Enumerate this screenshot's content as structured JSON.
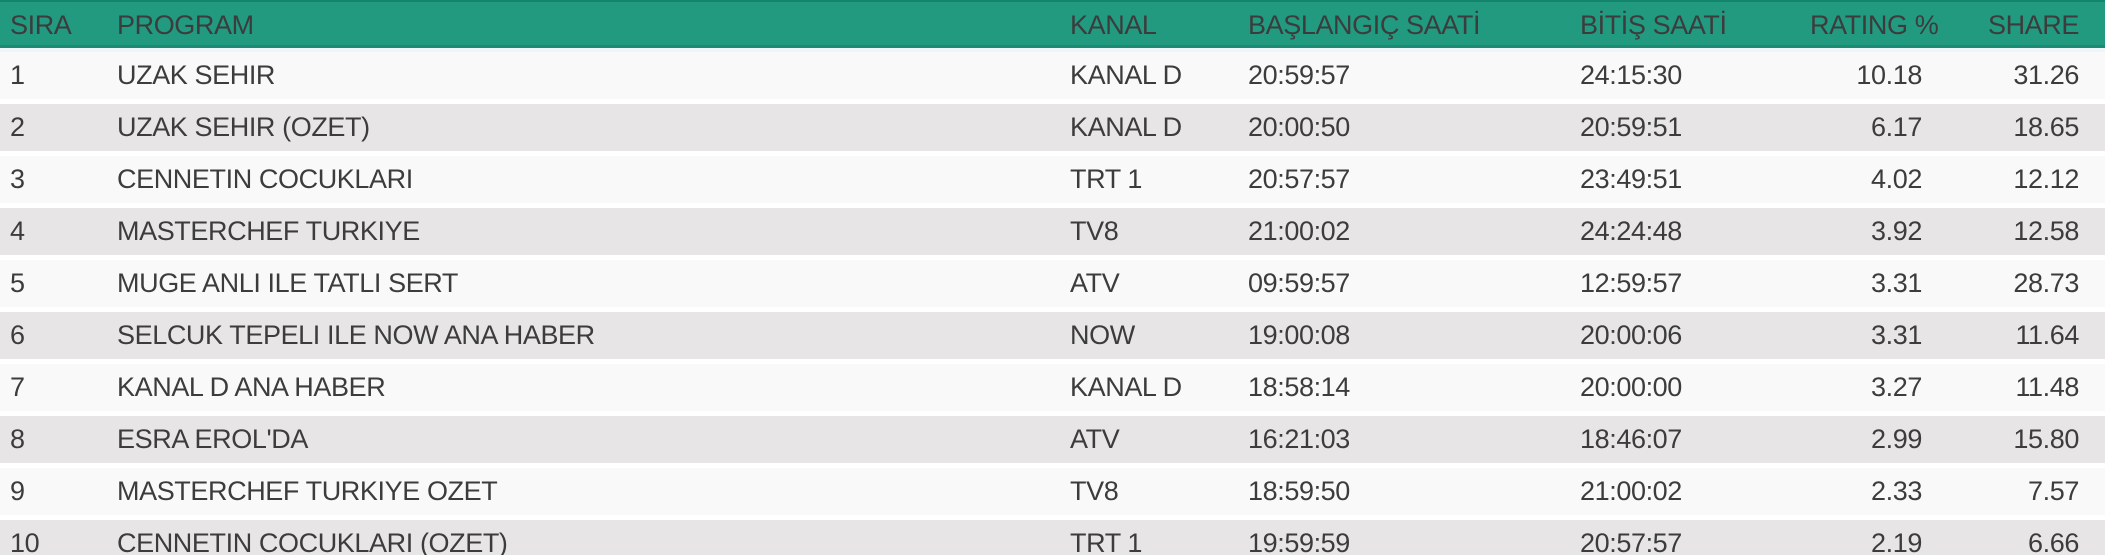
{
  "chart_data": {
    "type": "table",
    "columns": [
      {
        "key": "sira",
        "label": "SIRA"
      },
      {
        "key": "program",
        "label": "PROGRAM"
      },
      {
        "key": "kanal",
        "label": "KANAL"
      },
      {
        "key": "baslangic",
        "label": "BAŞLANGIÇ SAATİ"
      },
      {
        "key": "bitis",
        "label": "BİTİŞ SAATİ"
      },
      {
        "key": "rating",
        "label": "RATING %"
      },
      {
        "key": "share",
        "label": "SHARE"
      }
    ],
    "rows": [
      {
        "sira": "1",
        "program": "UZAK SEHIR",
        "kanal": "KANAL D",
        "baslangic": "20:59:57",
        "bitis": "24:15:30",
        "rating": "10.18",
        "share": "31.26"
      },
      {
        "sira": "2",
        "program": "UZAK SEHIR (OZET)",
        "kanal": "KANAL D",
        "baslangic": "20:00:50",
        "bitis": "20:59:51",
        "rating": "6.17",
        "share": "18.65"
      },
      {
        "sira": "3",
        "program": "CENNETIN COCUKLARI",
        "kanal": "TRT 1",
        "baslangic": "20:57:57",
        "bitis": "23:49:51",
        "rating": "4.02",
        "share": "12.12"
      },
      {
        "sira": "4",
        "program": "MASTERCHEF TURKIYE",
        "kanal": "TV8",
        "baslangic": "21:00:02",
        "bitis": "24:24:48",
        "rating": "3.92",
        "share": "12.58"
      },
      {
        "sira": "5",
        "program": "MUGE ANLI ILE TATLI SERT",
        "kanal": "ATV",
        "baslangic": "09:59:57",
        "bitis": "12:59:57",
        "rating": "3.31",
        "share": "28.73"
      },
      {
        "sira": "6",
        "program": "SELCUK TEPELI ILE NOW ANA HABER",
        "kanal": "NOW",
        "baslangic": "19:00:08",
        "bitis": "20:00:06",
        "rating": "3.31",
        "share": "11.64"
      },
      {
        "sira": "7",
        "program": "KANAL D ANA HABER",
        "kanal": "KANAL D",
        "baslangic": "18:58:14",
        "bitis": "20:00:00",
        "rating": "3.27",
        "share": "11.48"
      },
      {
        "sira": "8",
        "program": "ESRA EROL'DA",
        "kanal": "ATV",
        "baslangic": "16:21:03",
        "bitis": "18:46:07",
        "rating": "2.99",
        "share": "15.80"
      },
      {
        "sira": "9",
        "program": "MASTERCHEF TURKIYE OZET",
        "kanal": "TV8",
        "baslangic": "18:59:50",
        "bitis": "21:00:02",
        "rating": "2.33",
        "share": "7.57"
      },
      {
        "sira": "10",
        "program": "CENNETIN COCUKLARI (OZET)",
        "kanal": "TRT 1",
        "baslangic": "19:59:59",
        "bitis": "20:57:57",
        "rating": "2.19",
        "share": "6.66"
      }
    ]
  },
  "colors": {
    "header_bg": "#219a80",
    "header_top_edge": "#12856a",
    "header_text": "#e9f7f1",
    "row_odd_bg": "#f9f9fa",
    "row_even_bg": "#e7e5e6",
    "row_gap": "#ffffff",
    "header_gap": "#eef6f9",
    "body_text": "#3c3c3c"
  }
}
